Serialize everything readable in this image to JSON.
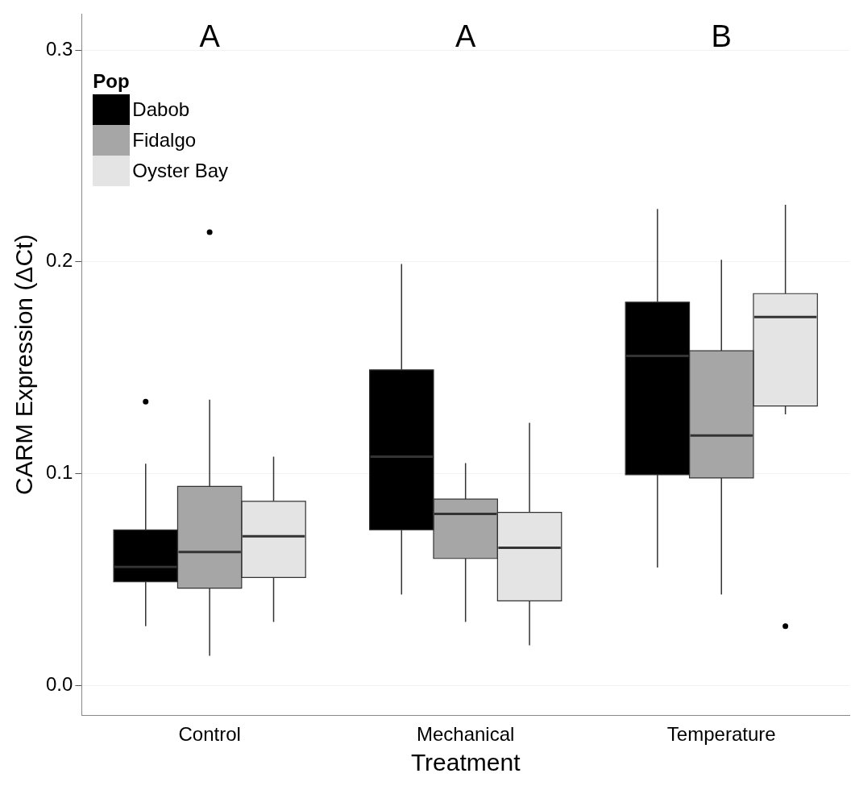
{
  "chart_data": {
    "type": "box",
    "xlabel": "Treatment",
    "ylabel": "CARM Expression (ΔCt)",
    "legend_title": "Pop",
    "legend": "top left",
    "grid": "y",
    "categories": [
      "Control",
      "Mechanical",
      "Temperature"
    ],
    "ylim": [
      -0.014,
      0.317
    ],
    "yticks": [
      {
        "value": 0,
        "label": "0.0"
      },
      {
        "value": 0.1,
        "label": "0.1"
      },
      {
        "value": 0.2,
        "label": "0.2"
      },
      {
        "value": 0.3,
        "label": "0.3"
      }
    ],
    "annotations": [
      "A",
      "A",
      "B"
    ],
    "series": [
      {
        "name": "Dabob",
        "color": "#000000",
        "boxes": [
          {
            "low": 0.028,
            "q1": 0.049,
            "median": 0.056,
            "q3": 0.0735,
            "high": 0.1047,
            "outliers": [
              0.134
            ]
          },
          {
            "low": 0.043,
            "q1": 0.0735,
            "median": 0.108,
            "q3": 0.149,
            "high": 0.199
          },
          {
            "low": 0.0557,
            "q1": 0.0995,
            "median": 0.1556,
            "q3": 0.181,
            "high": 0.225
          }
        ]
      },
      {
        "name": "Fidalgo",
        "color": "#a6a6a6",
        "boxes": [
          {
            "low": 0.014,
            "q1": 0.046,
            "median": 0.063,
            "q3": 0.094,
            "high": 0.135,
            "outliers": [
              0.214
            ]
          },
          {
            "low": 0.03,
            "q1": 0.06,
            "median": 0.081,
            "q3": 0.088,
            "high": 0.105
          },
          {
            "low": 0.043,
            "q1": 0.098,
            "median": 0.118,
            "q3": 0.158,
            "high": 0.201
          }
        ]
      },
      {
        "name": "Oyster Bay",
        "color": "#e4e4e4",
        "boxes": [
          {
            "low": 0.03,
            "q1": 0.051,
            "median": 0.0705,
            "q3": 0.087,
            "high": 0.108
          },
          {
            "low": 0.019,
            "q1": 0.04,
            "median": 0.065,
            "q3": 0.0817,
            "high": 0.124
          },
          {
            "low": 0.128,
            "q1": 0.132,
            "median": 0.174,
            "q3": 0.185,
            "high": 0.227,
            "outliers": [
              0.028
            ]
          }
        ]
      }
    ]
  }
}
